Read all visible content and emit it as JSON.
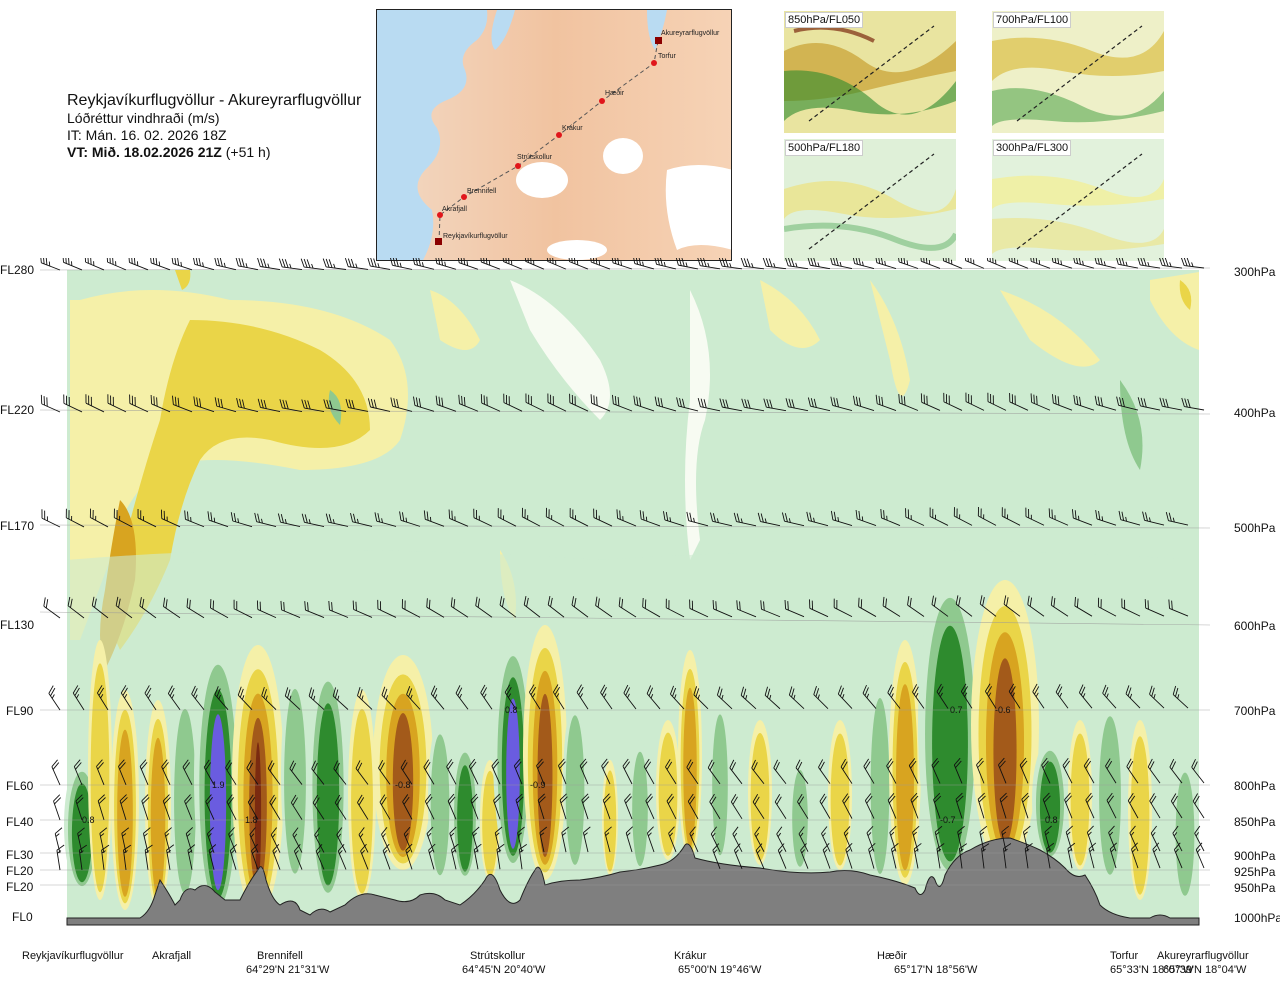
{
  "header": {
    "route": "Reykjavíkurflugvöllur - Akureyrarflugvöllur",
    "variable": "Lóðréttur vindhraði (m/s)",
    "initial_time": "IT: Mán. 16. 02. 2026 18Z",
    "valid_prefix": "VT: Mið. 18.02.2026 21Z",
    "valid_suffix": " (+51 h)"
  },
  "map": {
    "places": [
      "Akureyrarflugvöllur",
      "Torfur",
      "Hæðir",
      "Krákur",
      "Strútskollur",
      "Brennifell",
      "Akrafjall",
      "Reykjavíkurflugvöllur"
    ]
  },
  "mini_maps": [
    {
      "label": "850hPa/FL050"
    },
    {
      "label": "700hPa/FL100"
    },
    {
      "label": "500hPa/FL180"
    },
    {
      "label": "300hPa/FL300"
    }
  ],
  "chart_data": {
    "type": "heatmap",
    "left_axis": [
      "FL280",
      "FL220",
      "FL170",
      "FL130",
      "FL90",
      "FL60",
      "FL40",
      "FL30",
      "FL20",
      "FL20",
      "FL0"
    ],
    "right_axis": [
      "300hPa",
      "400hPa",
      "500hPa",
      "600hPa",
      "700hPa",
      "800hPa",
      "850hPa",
      "900hPa",
      "925hPa",
      "950hPa",
      "1000hPa"
    ],
    "waypoints": [
      {
        "name": "Reykjavíkurflugvöllur",
        "coord": ""
      },
      {
        "name": "Akrafjall",
        "coord": ""
      },
      {
        "name": "Brennifell",
        "coord": "64°29'N 21°31'W"
      },
      {
        "name": "Strútskollur",
        "coord": "64°45'N 20°40'W"
      },
      {
        "name": "Krákur",
        "coord": "65°00'N 19°46'W"
      },
      {
        "name": "Hæðir",
        "coord": "65°17'N 18°56'W"
      },
      {
        "name": "Torfur",
        "coord": "65°33'N 18°07'W"
      },
      {
        "name": "Akureyrarflugvöllur",
        "coord": "65°39'N 18°04'W"
      }
    ],
    "annotations": [
      "0.8",
      "1.9",
      "1.8",
      "-0.8",
      "0.8",
      "-0.9",
      "-0.7",
      "-0.6",
      "0.7",
      "0.8"
    ],
    "color_scale": {
      "strong_down": "#6a5ce0",
      "mod_down": "#2e8b2e",
      "weak_down": "#8fc98f",
      "faint_down": "#cdebd0",
      "near_zero": "#f7fbf2",
      "faint_up": "#f5f0a8",
      "weak_up": "#ead548",
      "mod_up": "#d8a420",
      "strong_up": "#a35a1a",
      "very_strong_up": "#7a2a10"
    }
  }
}
